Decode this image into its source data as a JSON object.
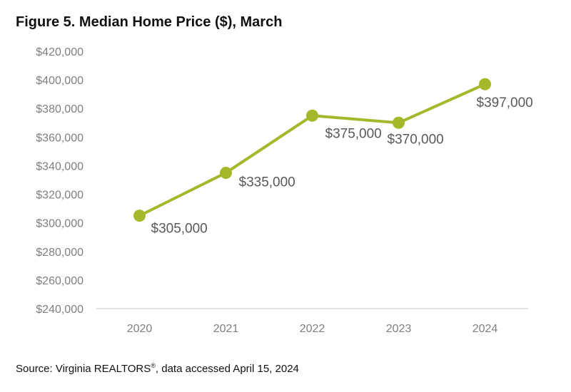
{
  "chart_data": {
    "type": "line",
    "title": "Figure 5. Median Home Price ($), March",
    "xlabel": "",
    "ylabel": "",
    "categories": [
      "2020",
      "2021",
      "2022",
      "2023",
      "2024"
    ],
    "series": [
      {
        "values": [
          305000,
          335000,
          375000,
          370000,
          397000
        ],
        "color": "#a5b82b"
      }
    ],
    "data_labels": [
      "$305,000",
      "$335,000",
      "$375,000",
      "$370,000",
      "$397,000"
    ],
    "ylim": [
      240000,
      420000
    ],
    "y_ticks": [
      240000,
      260000,
      280000,
      300000,
      320000,
      340000,
      360000,
      380000,
      400000,
      420000
    ],
    "y_tick_labels": [
      "$240,000",
      "$260,000",
      "$280,000",
      "$300,000",
      "$320,000",
      "$340,000",
      "$360,000",
      "$380,000",
      "$400,000",
      "$420,000"
    ],
    "grid": false,
    "legend": "none"
  },
  "footer": {
    "source_prefix": "Source: Virginia REALTORS",
    "source_mark": "®",
    "source_suffix": ", data accessed April 15, 2024"
  }
}
